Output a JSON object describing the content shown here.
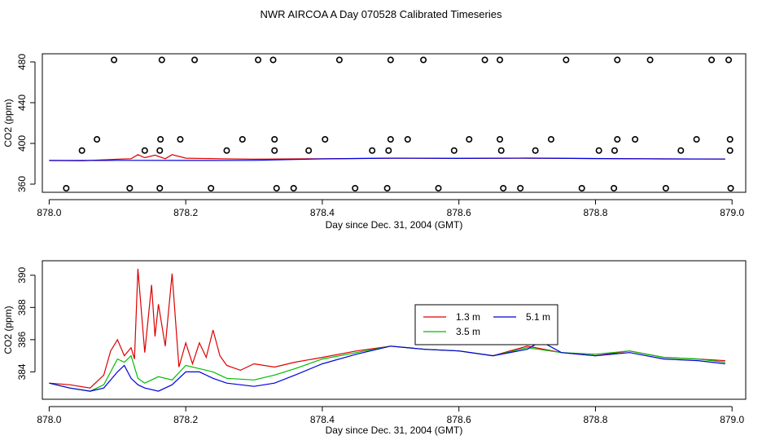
{
  "title": "NWR AIRCOA A  Day 070528  Calibrated Timeseries",
  "colors": {
    "r13": "#dd0000",
    "r35": "#00bb00",
    "r51": "#0000dd",
    "axis": "#000000"
  },
  "chart_data": [
    {
      "type": "scatter",
      "panel": "top",
      "xlabel": "Day since Dec. 31, 2004 (GMT)",
      "ylabel": "CO2 (ppm)",
      "xlim": [
        877.99,
        879.02
      ],
      "ylim": [
        352,
        488
      ],
      "xticks": [
        "878.0",
        "878.2",
        "878.4",
        "878.6",
        "878.8",
        "879.0"
      ],
      "yticks": [
        "360",
        "400",
        "440",
        "480"
      ],
      "grid": false,
      "points": {
        "marker": "open-circle",
        "values": [
          {
            "x": 878.095,
            "y": 482
          },
          {
            "x": 878.165,
            "y": 482
          },
          {
            "x": 878.213,
            "y": 482
          },
          {
            "x": 878.306,
            "y": 482
          },
          {
            "x": 878.328,
            "y": 482
          },
          {
            "x": 878.425,
            "y": 482
          },
          {
            "x": 878.5,
            "y": 482
          },
          {
            "x": 878.548,
            "y": 482
          },
          {
            "x": 878.638,
            "y": 482
          },
          {
            "x": 878.66,
            "y": 482
          },
          {
            "x": 878.757,
            "y": 482
          },
          {
            "x": 878.832,
            "y": 482
          },
          {
            "x": 878.88,
            "y": 482
          },
          {
            "x": 878.97,
            "y": 482
          },
          {
            "x": 878.995,
            "y": 482
          },
          {
            "x": 878.07,
            "y": 404
          },
          {
            "x": 878.163,
            "y": 404
          },
          {
            "x": 878.192,
            "y": 404
          },
          {
            "x": 878.283,
            "y": 404
          },
          {
            "x": 878.33,
            "y": 404
          },
          {
            "x": 878.404,
            "y": 404
          },
          {
            "x": 878.5,
            "y": 404
          },
          {
            "x": 878.525,
            "y": 404
          },
          {
            "x": 878.615,
            "y": 404
          },
          {
            "x": 878.66,
            "y": 404
          },
          {
            "x": 878.735,
            "y": 404
          },
          {
            "x": 878.832,
            "y": 404
          },
          {
            "x": 878.858,
            "y": 404
          },
          {
            "x": 878.948,
            "y": 404
          },
          {
            "x": 878.997,
            "y": 404
          },
          {
            "x": 878.048,
            "y": 393
          },
          {
            "x": 878.14,
            "y": 393
          },
          {
            "x": 878.162,
            "y": 393
          },
          {
            "x": 878.26,
            "y": 393
          },
          {
            "x": 878.33,
            "y": 393
          },
          {
            "x": 878.38,
            "y": 393
          },
          {
            "x": 878.473,
            "y": 393
          },
          {
            "x": 878.497,
            "y": 393
          },
          {
            "x": 878.593,
            "y": 393
          },
          {
            "x": 878.662,
            "y": 393
          },
          {
            "x": 878.712,
            "y": 393
          },
          {
            "x": 878.805,
            "y": 393
          },
          {
            "x": 878.828,
            "y": 393
          },
          {
            "x": 878.925,
            "y": 393
          },
          {
            "x": 878.997,
            "y": 393
          },
          {
            "x": 878.025,
            "y": 356
          },
          {
            "x": 878.118,
            "y": 356
          },
          {
            "x": 878.162,
            "y": 356
          },
          {
            "x": 878.237,
            "y": 356
          },
          {
            "x": 878.333,
            "y": 356
          },
          {
            "x": 878.358,
            "y": 356
          },
          {
            "x": 878.448,
            "y": 356
          },
          {
            "x": 878.495,
            "y": 356
          },
          {
            "x": 878.57,
            "y": 356
          },
          {
            "x": 878.665,
            "y": 356
          },
          {
            "x": 878.69,
            "y": 356
          },
          {
            "x": 878.78,
            "y": 356
          },
          {
            "x": 878.827,
            "y": 356
          },
          {
            "x": 878.903,
            "y": 356
          },
          {
            "x": 878.998,
            "y": 356
          }
        ]
      },
      "series": [
        {
          "name": "1.3 m",
          "color": "#dd0000",
          "x": [
            878.0,
            878.05,
            878.1,
            878.12,
            878.13,
            878.14,
            878.155,
            878.17,
            878.18,
            878.2,
            878.25,
            878.3,
            878.4,
            878.5,
            878.6,
            878.7,
            878.8,
            878.9,
            878.99
          ],
          "values": [
            383.3,
            383.0,
            384.5,
            385.0,
            389.0,
            386.0,
            388.5,
            385.0,
            389.0,
            385.5,
            385.0,
            384.5,
            385.0,
            385.5,
            385.3,
            385.5,
            385.2,
            384.8,
            384.6
          ]
        },
        {
          "name": "5.1 m",
          "color": "#0000dd",
          "x": [
            878.0,
            878.1,
            878.2,
            878.3,
            878.4,
            878.5,
            878.6,
            878.7,
            878.8,
            878.9,
            878.99
          ],
          "values": [
            383.2,
            383.4,
            383.3,
            383.4,
            384.8,
            385.5,
            385.3,
            385.6,
            385.1,
            384.8,
            384.6
          ]
        }
      ]
    },
    {
      "type": "line",
      "panel": "bottom",
      "xlabel": "Day since Dec. 31, 2004 (GMT)",
      "ylabel": "CO2 (ppm)",
      "xlim": [
        877.99,
        879.02
      ],
      "ylim": [
        382.3,
        390.9
      ],
      "xticks": [
        "878.0",
        "878.2",
        "878.4",
        "878.6",
        "878.8",
        "879.0"
      ],
      "yticks": [
        "384",
        "386",
        "388",
        "390"
      ],
      "grid": false,
      "legend": {
        "placement": "center-right",
        "entries": [
          "1.3 m",
          "5.1 m",
          "3.5 m"
        ]
      },
      "series": [
        {
          "name": "1.3 m",
          "color": "#dd0000",
          "x": [
            878.0,
            878.03,
            878.06,
            878.08,
            878.09,
            878.1,
            878.11,
            878.12,
            878.125,
            878.13,
            878.14,
            878.15,
            878.155,
            878.16,
            878.17,
            878.18,
            878.19,
            878.2,
            878.21,
            878.22,
            878.23,
            878.24,
            878.25,
            878.26,
            878.28,
            878.3,
            878.33,
            878.36,
            878.4,
            878.45,
            878.5,
            878.55,
            878.6,
            878.65,
            878.7,
            878.75,
            878.8,
            878.85,
            878.9,
            878.95,
            878.99
          ],
          "values": [
            383.3,
            383.2,
            383.0,
            383.8,
            385.3,
            386.0,
            385.0,
            385.5,
            384.8,
            390.4,
            385.2,
            389.4,
            386.2,
            388.2,
            385.6,
            390.1,
            384.3,
            385.8,
            384.5,
            385.8,
            384.9,
            386.6,
            385.0,
            384.4,
            384.1,
            384.5,
            384.3,
            384.6,
            384.9,
            385.3,
            385.6,
            385.4,
            385.3,
            385.0,
            385.6,
            385.2,
            385.0,
            385.3,
            384.9,
            384.8,
            384.7
          ]
        },
        {
          "name": "3.5 m",
          "color": "#00bb00",
          "x": [
            878.0,
            878.03,
            878.06,
            878.08,
            878.1,
            878.11,
            878.12,
            878.13,
            878.14,
            878.16,
            878.18,
            878.2,
            878.22,
            878.24,
            878.26,
            878.3,
            878.33,
            878.36,
            878.4,
            878.45,
            878.5,
            878.55,
            878.6,
            878.65,
            878.7,
            878.75,
            878.8,
            878.85,
            878.9,
            878.95,
            878.99
          ],
          "values": [
            383.3,
            383.0,
            382.8,
            383.2,
            384.8,
            384.6,
            385.0,
            383.6,
            383.3,
            383.7,
            383.5,
            384.4,
            384.2,
            384.0,
            383.6,
            383.5,
            383.8,
            384.2,
            384.8,
            385.2,
            385.6,
            385.4,
            385.3,
            385.0,
            385.5,
            385.2,
            385.1,
            385.3,
            384.9,
            384.8,
            384.6
          ]
        },
        {
          "name": "5.1 m",
          "color": "#0000dd",
          "x": [
            878.0,
            878.03,
            878.06,
            878.08,
            878.1,
            878.11,
            878.12,
            878.13,
            878.14,
            878.16,
            878.18,
            878.2,
            878.22,
            878.24,
            878.26,
            878.3,
            878.33,
            878.36,
            878.4,
            878.45,
            878.5,
            878.55,
            878.6,
            878.65,
            878.7,
            878.72,
            878.75,
            878.8,
            878.85,
            878.9,
            878.95,
            878.99
          ],
          "values": [
            383.3,
            383.0,
            382.8,
            383.0,
            384.0,
            384.4,
            383.6,
            383.2,
            383.0,
            382.8,
            383.2,
            384.0,
            384.0,
            383.6,
            383.3,
            383.1,
            383.3,
            383.8,
            384.5,
            385.1,
            385.6,
            385.4,
            385.3,
            385.0,
            385.4,
            385.9,
            385.2,
            385.0,
            385.2,
            384.8,
            384.7,
            384.5
          ]
        }
      ]
    }
  ]
}
